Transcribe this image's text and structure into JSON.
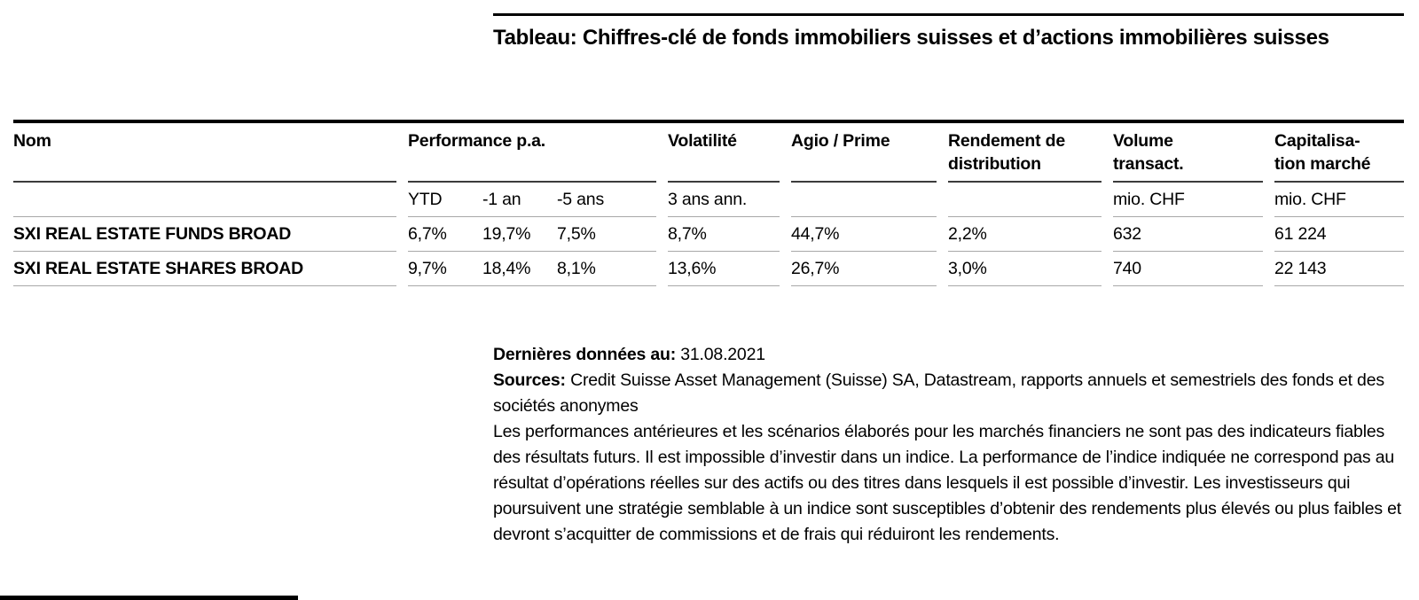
{
  "title": {
    "text": "Tableau: Chiffres-clé de fonds immobiliers suisses et d’actions immobilières suisses"
  },
  "table": {
    "header": {
      "name": "Nom",
      "performance_group": "Performance p.a.",
      "volatility": "Volatilité",
      "agio": "Agio / Prime",
      "distribution_yield": "Rendement de distribution",
      "volume": "Volume transact.",
      "market_cap_line1": "Capitalisa-",
      "market_cap_line2": "tion marché"
    },
    "subheader": {
      "ytd": "YTD",
      "one_year": "-1 an",
      "five_years": "-5 ans",
      "volatility_period": "3 ans ann.",
      "volume_unit": "mio. CHF",
      "market_cap_unit": "mio. CHF"
    },
    "rows": [
      {
        "name": "SXI REAL ESTATE FUNDS BROAD",
        "ytd": "6,7%",
        "one_year": "19,7%",
        "five_years": "7,5%",
        "volatility": "8,7%",
        "agio": "44,7%",
        "distribution_yield": "2,2%",
        "volume": "632",
        "market_cap": "61 224"
      },
      {
        "name": "SXI REAL ESTATE SHARES BROAD",
        "ytd": "9,7%",
        "one_year": "18,4%",
        "five_years": "8,1%",
        "volatility": "13,6%",
        "agio": "26,7%",
        "distribution_yield": "3,0%",
        "volume": "740",
        "market_cap": "22 143"
      }
    ]
  },
  "footer": {
    "last_data_label": "Dernières données au:",
    "last_data_value": "31.08.2021",
    "sources_label": "Sources:",
    "sources_text": "Credit Suisse Asset Management (Suisse) SA, Datastream, rapports annuels et semestriels des fonds et des sociétés anonymes",
    "disclaimer": "Les performances antérieures et les scénarios élaborés pour les marchés financiers ne sont pas des indicateurs fiables des résultats futurs. Il est impossible d’investir dans un indice. La performance de l’indice indiquée ne correspond pas au résultat d’opérations réelles sur des actifs ou des titres dans lesquels il est possible d’investir. Les investisseurs qui poursuivent une stratégie semblable à un indice sont susceptibles d’obtenir des rendements plus élevés ou plus faibles et devront s’acquitter de commissions et de frais qui réduiront les rendements."
  }
}
